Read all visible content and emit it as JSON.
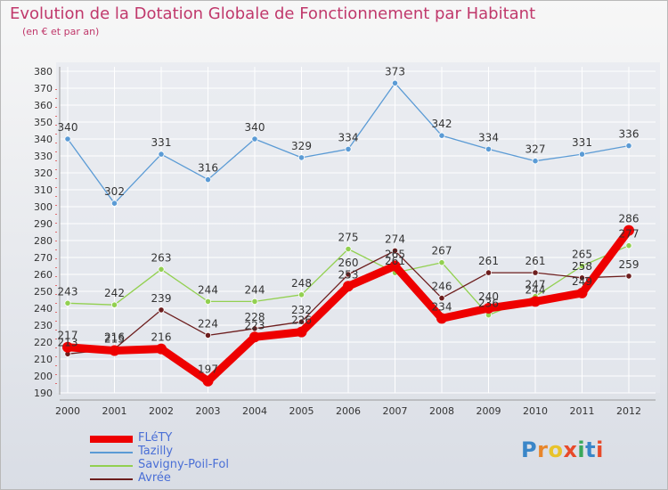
{
  "title": "Evolution de la Dotation Globale de Fonctionnement par Habitant",
  "subtitle": "(en € et par an)",
  "logo": "Proxiti",
  "colors": {
    "title": "#c0386b",
    "legend_text": "#4a6fd6",
    "axis_text": "#333333",
    "grid": "#ffffff"
  },
  "chart_data": {
    "type": "line",
    "title": "Evolution de la Dotation Globale de Fonctionnement par Habitant",
    "subtitle": "(en € et par an)",
    "x": [
      "2000",
      "2001",
      "2002",
      "2003",
      "2004",
      "2005",
      "2006",
      "2007",
      "2008",
      "2009",
      "2010",
      "2011",
      "2012"
    ],
    "ylim": [
      190,
      380
    ],
    "yticks": [
      190,
      200,
      210,
      220,
      230,
      240,
      250,
      260,
      270,
      280,
      290,
      300,
      310,
      320,
      330,
      340,
      350,
      360,
      370,
      380
    ],
    "grid": true,
    "legend_position": "bottom-left",
    "series": [
      {
        "name": "FLéTY",
        "color": "#ee0000",
        "values": [
          217,
          215,
          216,
          197,
          223,
          226,
          253,
          265,
          234,
          240,
          244,
          249,
          286
        ],
        "labels": [
          "217",
          "215",
          "216",
          "197",
          "223",
          "226",
          "253",
          "265",
          "234",
          "240",
          "244",
          "249",
          "286"
        ]
      },
      {
        "name": "Tazilly",
        "color": "#5b9bd5",
        "values": [
          340,
          302,
          331,
          316,
          340,
          329,
          334,
          373,
          342,
          334,
          327,
          331,
          336
        ],
        "labels": [
          "340",
          "302",
          "331",
          "316",
          "340",
          "329",
          "334",
          "373",
          "342",
          "334",
          "327",
          "331",
          "336"
        ]
      },
      {
        "name": "Savigny-Poil-Fol",
        "color": "#92d050",
        "values": [
          243,
          242,
          263,
          244,
          244,
          248,
          275,
          261,
          267,
          236,
          247,
          265,
          277
        ],
        "labels": [
          "243",
          "242",
          "263",
          "244",
          "244",
          "248",
          "275",
          "261",
          "267",
          "236",
          "247",
          "265",
          "277"
        ]
      },
      {
        "name": "Avrée",
        "color": "#6d1e1e",
        "values": [
          213,
          216,
          239,
          224,
          228,
          232,
          260,
          274,
          246,
          261,
          261,
          258,
          259
        ],
        "labels": [
          "213",
          "216",
          "239",
          "224",
          "228",
          "232",
          "260",
          "274",
          "246",
          "261",
          "261",
          "258",
          "259"
        ]
      }
    ]
  }
}
